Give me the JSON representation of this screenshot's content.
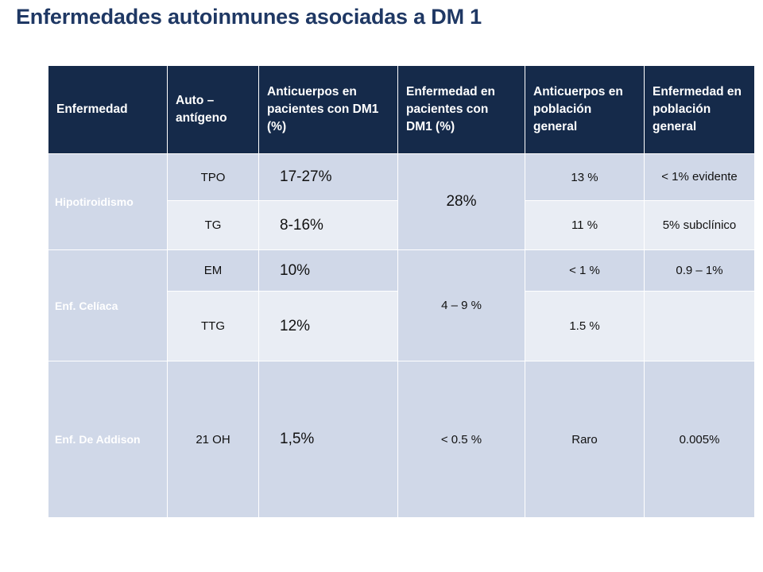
{
  "title": "Enfermedades autoinmunes asociadas a DM 1",
  "headers": [
    "Enfermedad",
    "Auto – antígeno",
    "Anticuerpos en pacientes con DM1 (%)",
    "Enfermedad en pacientes con DM1 (%)",
    "Anticuerpos en población general",
    "Enfermedad en población general"
  ],
  "groups": [
    {
      "disease": "Hipotiroidismo",
      "disease_in_dm1": "28%",
      "rows": [
        {
          "antigen": "TPO",
          "antibodies_dm1": "17-27%",
          "antibodies_general": "13 %",
          "disease_general": "< 1% evidente"
        },
        {
          "antigen": "TG",
          "antibodies_dm1": "8-16%",
          "antibodies_general": "11 %",
          "disease_general": "5% subclínico"
        }
      ]
    },
    {
      "disease": "Enf. Celíaca",
      "disease_in_dm1": "4 – 9 %",
      "rows": [
        {
          "antigen": "EM",
          "antibodies_dm1": "10%",
          "antibodies_general": "< 1 %",
          "disease_general": "0.9 – 1%"
        },
        {
          "antigen": "TTG",
          "antibodies_dm1": "12%",
          "antibodies_general": "1.5 %",
          "disease_general": ""
        }
      ]
    },
    {
      "disease": "Enf. De Addison",
      "disease_in_dm1": "< 0.5 %",
      "rows": [
        {
          "antigen": "21 OH",
          "antibodies_dm1": "1,5%",
          "antibodies_general": "Raro",
          "disease_general": "0.005%"
        }
      ]
    }
  ]
}
